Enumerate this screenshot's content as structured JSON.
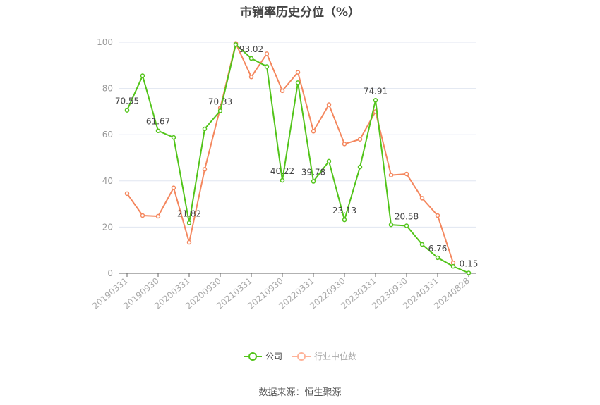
{
  "title": "市销率历史分位（%）",
  "source": "数据来源：恒生聚源",
  "legend": [
    {
      "label": "公司",
      "color": "#52c41a",
      "active": true
    },
    {
      "label": "行业中位数",
      "color": "#ffb399",
      "active": false
    }
  ],
  "chart_data": {
    "type": "line",
    "title": "市销率历史分位（%）",
    "xlabel": "",
    "ylabel": "",
    "ylim": [
      0,
      100
    ],
    "yticks": [
      0,
      20,
      40,
      60,
      80,
      100
    ],
    "grid": true,
    "legend_position": "bottom",
    "x": [
      "20190331",
      "20190630",
      "20190930",
      "20191231",
      "20200331",
      "20200630",
      "20200930",
      "20201231",
      "20210331",
      "20210630",
      "20210930",
      "20211231",
      "20220331",
      "20220630",
      "20220930",
      "20221231",
      "20230331",
      "20230630",
      "20230930",
      "20231231",
      "20240331",
      "20240630",
      "20240828"
    ],
    "xtick_labels": [
      "20190331",
      "20190930",
      "20200331",
      "20200930",
      "20210331",
      "20210930",
      "20220331",
      "20220930",
      "20230331",
      "20230930",
      "20240331",
      "20240828"
    ],
    "series": [
      {
        "name": "公司",
        "color": "#52c41a",
        "values": [
          70.55,
          85.5,
          61.67,
          58.8,
          21.82,
          62.5,
          70.33,
          99.0,
          93.02,
          89.5,
          40.22,
          82.5,
          39.78,
          48.5,
          23.13,
          46.0,
          74.91,
          21.0,
          20.58,
          12.5,
          6.76,
          3.0,
          0.15
        ],
        "labels": {
          "0": "70.55",
          "2": "61.67",
          "4": "21.82",
          "6": "70.33",
          "8": "93.02",
          "10": "40.22",
          "12": "39.78",
          "14": "23.13",
          "16": "74.91",
          "18": "20.58",
          "20": "6.76",
          "22": "0.15"
        }
      },
      {
        "name": "行业中位数",
        "color": "#f4875e",
        "values": [
          34.5,
          25.0,
          24.7,
          37.0,
          13.4,
          45.0,
          71.5,
          99.5,
          85.0,
          95.0,
          79.0,
          87.0,
          61.5,
          73.0,
          56.0,
          58.0,
          70.0,
          42.5,
          43.0,
          32.5,
          25.0,
          4.5,
          null
        ]
      }
    ]
  }
}
